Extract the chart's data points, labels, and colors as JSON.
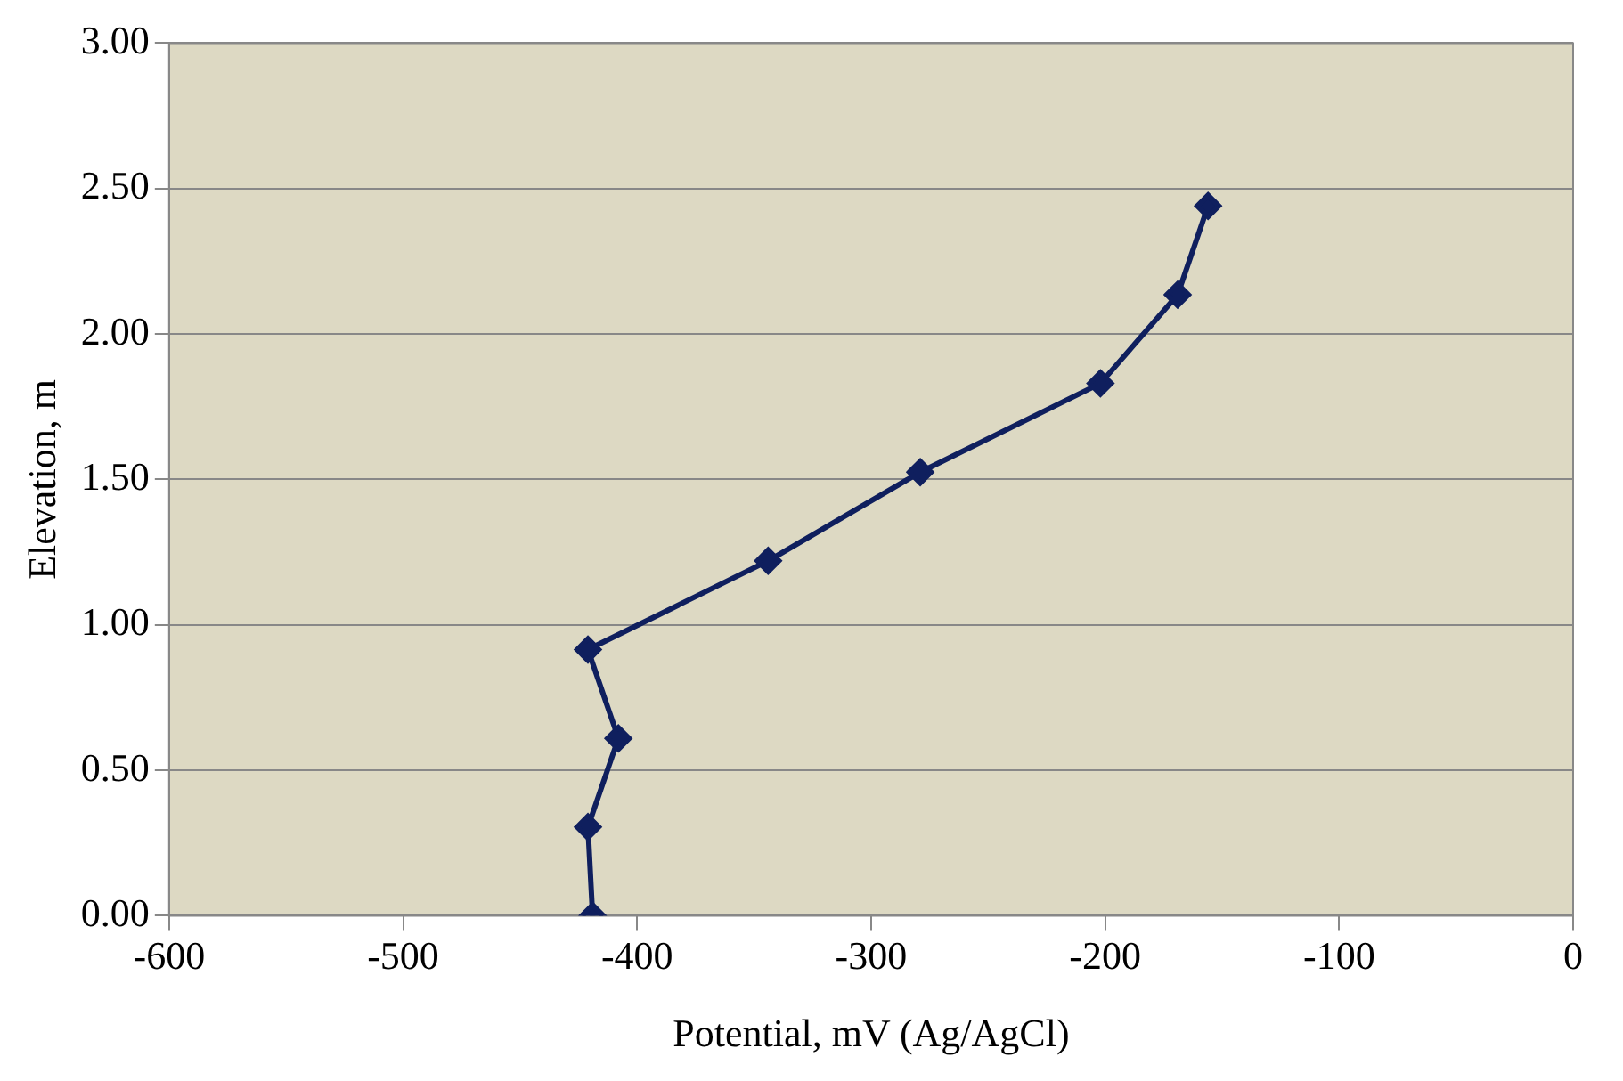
{
  "chart_data": {
    "type": "line",
    "xlabel": "Potential, mV (Ag/AgCl)",
    "ylabel": "Elevation, m",
    "x": [
      -419,
      -421,
      -408,
      -421,
      -344,
      -279,
      -202,
      -169,
      -156
    ],
    "series": [
      {
        "color": "#0f1f5e",
        "values": [
          0,
          0.305,
          0.61,
          0.915,
          1.22,
          1.525,
          1.83,
          2.135,
          2.44
        ]
      }
    ],
    "xlim": [
      -600,
      0
    ],
    "xticks": [
      -600,
      -500,
      -400,
      -300,
      -200,
      -100,
      0
    ],
    "ylim": [
      0,
      3
    ],
    "yticks": [
      {
        "value": 0,
        "label": "0.00"
      },
      {
        "value": 0.5,
        "label": "0.50"
      },
      {
        "value": 1,
        "label": "1.00"
      },
      {
        "value": 1.5,
        "label": "1.50"
      },
      {
        "value": 2,
        "label": "2.00"
      },
      {
        "value": 2.5,
        "label": "2.50"
      },
      {
        "value": 3,
        "label": "3.00"
      }
    ],
    "grid": "y",
    "legend": false,
    "marker": "diamond",
    "line_style": "solid"
  }
}
